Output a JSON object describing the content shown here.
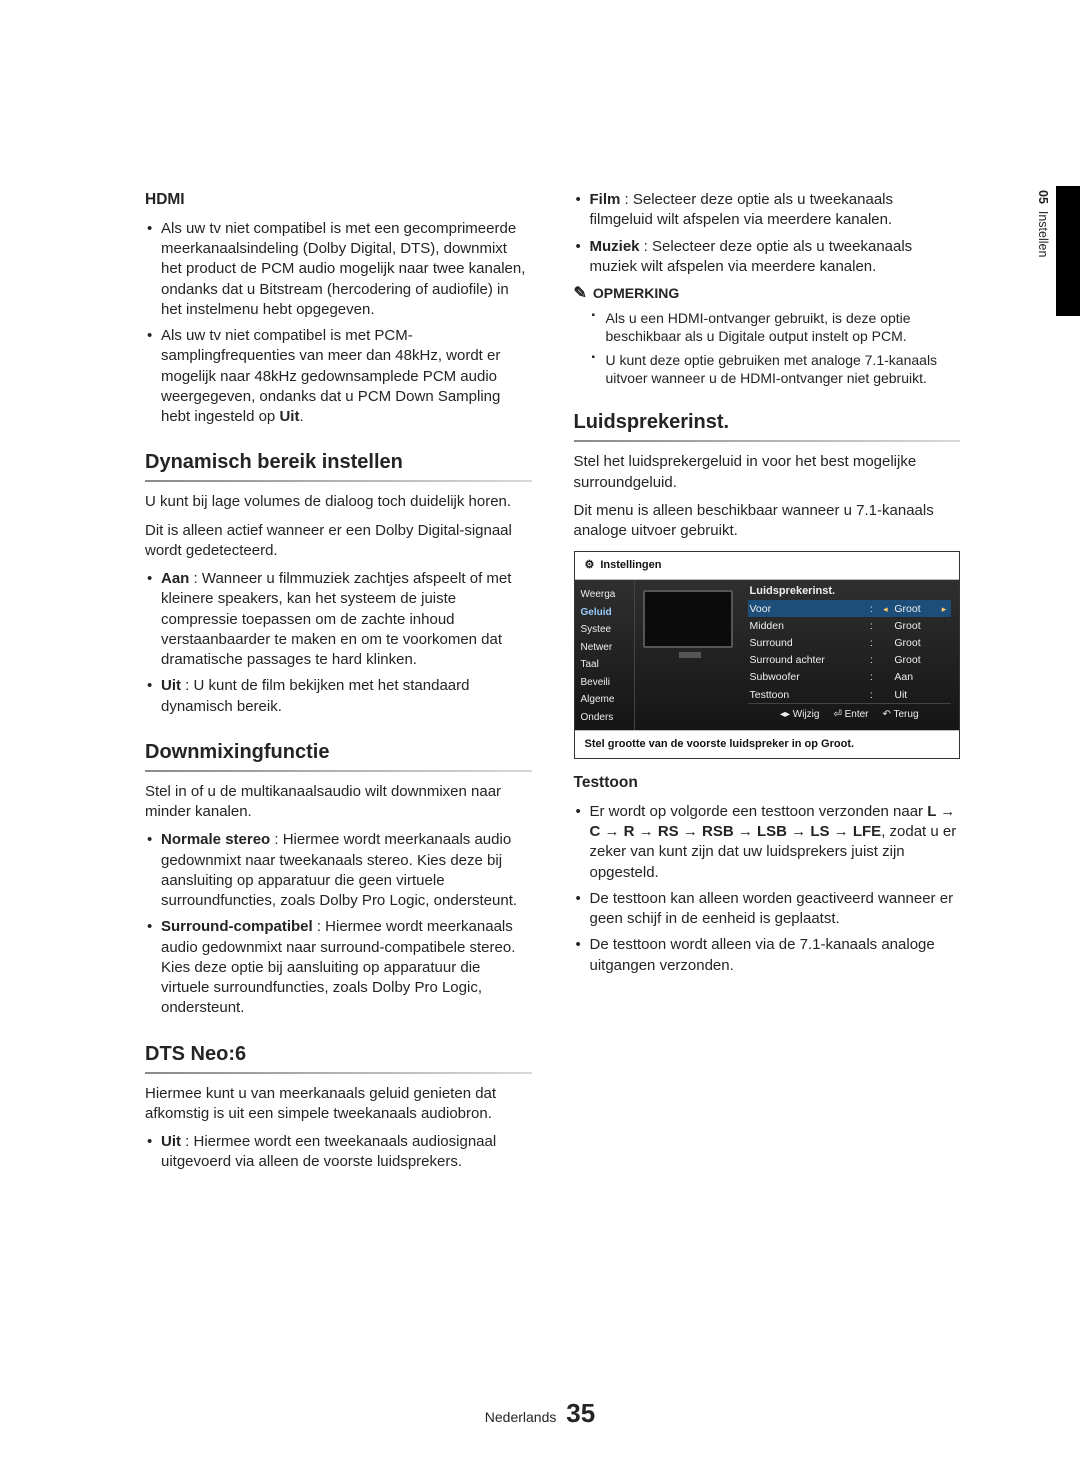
{
  "side": {
    "chapter_num": "05",
    "chapter_title": "Instellen"
  },
  "footer": {
    "lang": "Nederlands",
    "page": "35"
  },
  "left": {
    "hdmi": {
      "heading": "HDMI",
      "items": [
        "Als uw tv niet compatibel is met een gecomprimeerde meerkanaalsindeling (Dolby Digital, DTS), downmixt het product de PCM audio mogelijk naar twee kanalen, ondanks dat u Bitstream (hercodering of audiofile) in het instelmenu hebt opgegeven.",
        "Als uw tv niet compatibel is met PCM-samplingfrequenties van meer dan 48kHz, wordt er mogelijk naar 48kHz gedownsamplede PCM audio weergegeven, ondanks dat u PCM Down Sampling hebt ingesteld op "
      ],
      "uit": "Uit"
    },
    "dyn": {
      "heading": "Dynamisch bereik instellen",
      "p1": "U kunt bij lage volumes de dialoog toch duidelijk horen.",
      "p2": "Dit is alleen actief wanneer er een Dolby Digital-signaal wordt gedetecteerd.",
      "aan_b": "Aan",
      "aan_t": " : Wanneer u filmmuziek zachtjes afspeelt of met kleinere speakers, kan het systeem de juiste compressie toepassen om de zachte inhoud verstaanbaarder te maken en om te voorkomen dat dramatische passages te hard klinken.",
      "uit_b": "Uit",
      "uit_t": " : U kunt de film bekijken met het standaard dynamisch bereik."
    },
    "dm": {
      "heading": "Downmixingfunctie",
      "p1": "Stel in of u de multikanaalsaudio wilt downmixen naar minder kanalen.",
      "ns_b": "Normale stereo",
      "ns_t": " : Hiermee wordt meerkanaals audio gedownmixt naar tweekanaals stereo. Kies deze bij aansluiting op apparatuur die geen virtuele surroundfuncties, zoals Dolby Pro Logic, ondersteunt.",
      "sc_b": "Surround-compatibel",
      "sc_t1": " : Hiermee wordt meerkanaals audio gedownmixt naar surround-compatibele stereo.",
      "sc_t2": "Kies deze optie bij aansluiting op apparatuur die virtuele surroundfuncties, zoals Dolby Pro Logic, ondersteunt."
    },
    "dts": {
      "heading": "DTS Neo:6",
      "p1": "Hiermee kunt u van meerkanaals geluid genieten dat afkomstig is uit een simpele tweekanaals audiobron.",
      "uit_b": "Uit",
      "uit_t": " : Hiermee wordt een tweekanaals audiosignaal uitgevoerd via alleen de voorste luidsprekers."
    }
  },
  "right": {
    "top": {
      "film_b": "Film",
      "film_t": " : Selecteer deze optie als u tweekanaals filmgeluid wilt afspelen via meerdere kanalen.",
      "muz_b": "Muziek",
      "muz_t": " : Selecteer deze optie als u tweekanaals muziek wilt afspelen via meerdere kanalen."
    },
    "note": {
      "label": "OPMERKING",
      "items": [
        "Als u een HDMI-ontvanger gebruikt, is deze optie beschikbaar als u Digitale output instelt op PCM.",
        "U kunt deze optie gebruiken met analoge 7.1-kanaals uitvoer wanneer u de HDMI-ontvanger niet gebruikt."
      ]
    },
    "sp": {
      "heading": "Luidsprekerinst.",
      "p1": "Stel het luidsprekergeluid in voor het best mogelijke surroundgeluid.",
      "p2": "Dit menu is alleen beschikbaar wanneer u 7.1-kanaals analoge uitvoer gebruikt."
    },
    "shot": {
      "title_bar": "Instellingen",
      "panel_title": "Luidsprekerinst.",
      "sidebar": [
        "Weerga",
        "Geluid",
        "Systee",
        "Netwer",
        "Taal",
        "Beveili",
        "Algeme",
        "Onders"
      ],
      "rows": [
        {
          "k": "Voor",
          "s": ":",
          "l": "◂",
          "v": "Groot",
          "r": "▸",
          "hl": true
        },
        {
          "k": "Midden",
          "s": ":",
          "l": "",
          "v": "Groot",
          "r": "",
          "hl": false
        },
        {
          "k": "Surround",
          "s": ":",
          "l": "",
          "v": "Groot",
          "r": "",
          "hl": false
        },
        {
          "k": "Surround achter",
          "s": ":",
          "l": "",
          "v": "Groot",
          "r": "",
          "hl": false
        },
        {
          "k": "Subwoofer",
          "s": ":",
          "l": "",
          "v": "Aan",
          "r": "",
          "hl": false
        },
        {
          "k": "Testtoon",
          "s": ":",
          "l": "",
          "v": "Uit",
          "r": "",
          "hl": false
        }
      ],
      "hints": {
        "a": "◂▸ Wijzig",
        "b": "⏎ Enter",
        "c": "↶ Terug"
      },
      "caption": "Stel grootte van de voorste luidspreker in op Groot."
    },
    "tt": {
      "heading": "Testtoon",
      "i1a": "Er wordt op volgorde een testtoon verzonden naar ",
      "i1b": "L → C → R → RS → RSB → LSB → LS → LFE",
      "i1c": ", zodat u er zeker van kunt zijn dat uw luidsprekers juist zijn opgesteld.",
      "i2": "De testtoon kan alleen worden geactiveerd wanneer er geen schijf in de eenheid is geplaatst.",
      "i3": "De testtoon wordt alleen via de 7.1-kanaals analoge uitgangen verzonden."
    }
  }
}
